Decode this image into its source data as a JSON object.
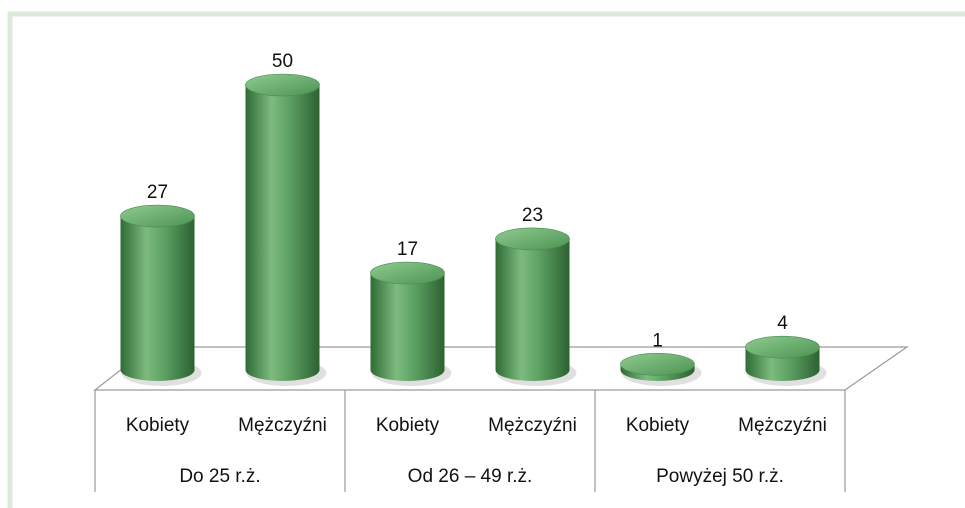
{
  "chart_data": {
    "type": "bar",
    "categories": [
      "Kobiety",
      "Mężczyźni",
      "Kobiety",
      "Mężczyźni",
      "Kobiety",
      "Mężczyźni"
    ],
    "groups": [
      "Do 25 r.ż.",
      "Od 26 – 49 r.ż.",
      "Powyżej 50 r.ż."
    ],
    "values": [
      27,
      50,
      17,
      23,
      1,
      4
    ],
    "color": "#5c9f62"
  }
}
